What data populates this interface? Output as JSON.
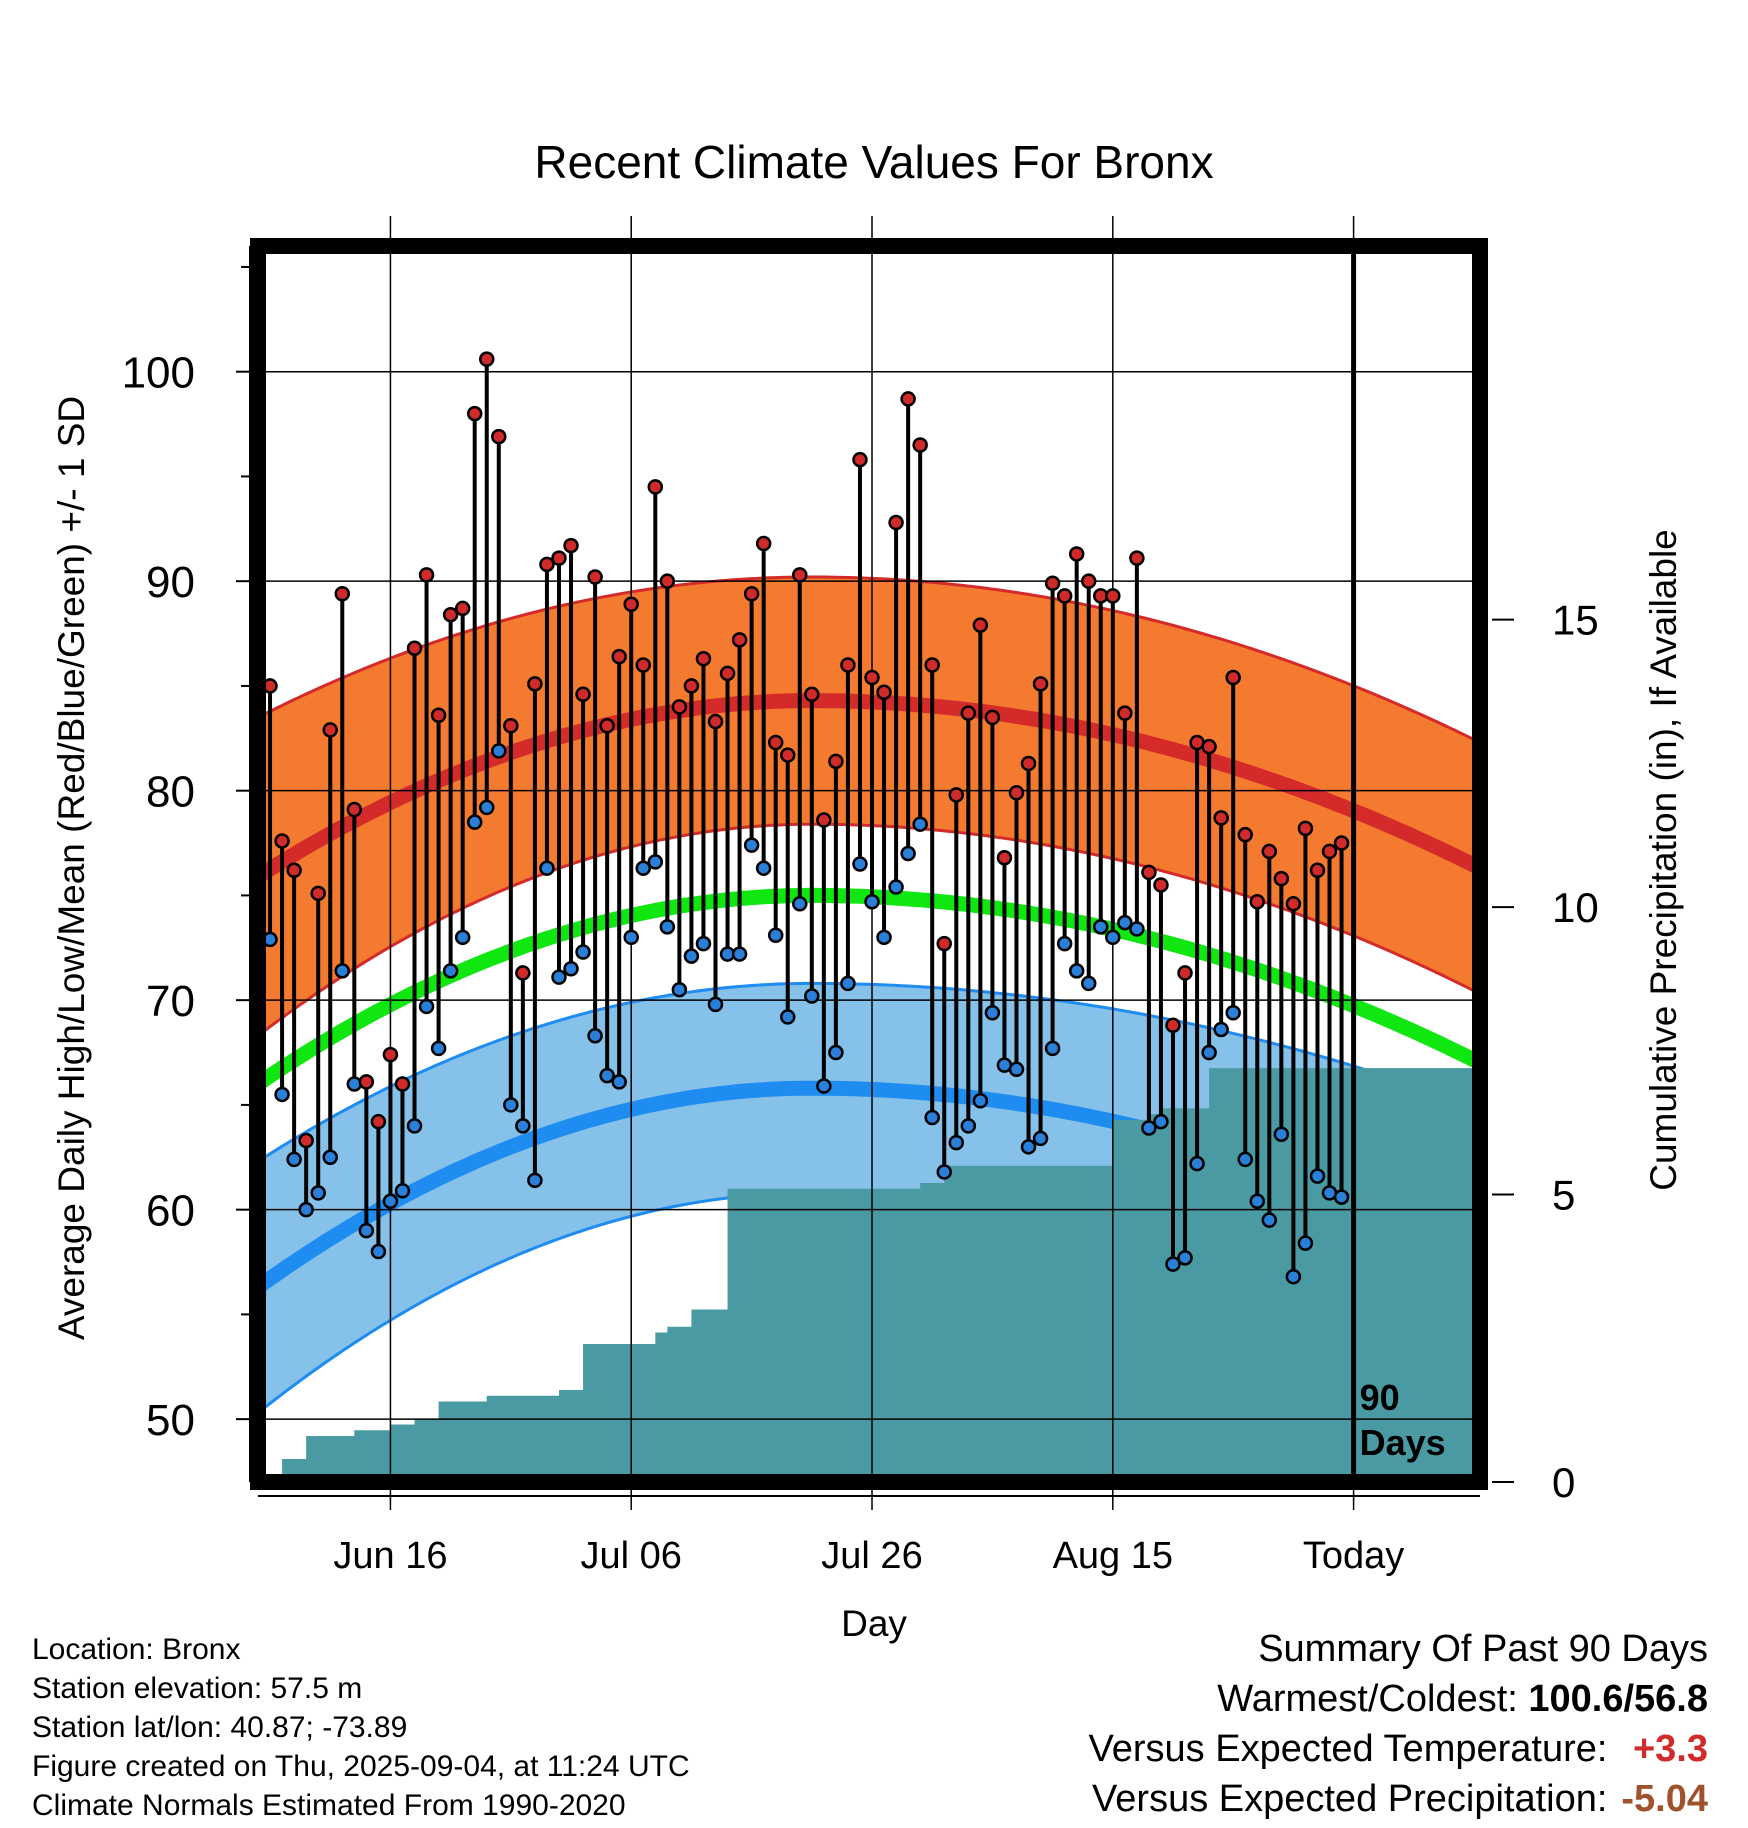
{
  "chart_data": {
    "type": "line",
    "title": "Recent Climate Values For Bronx",
    "xlabel": "Day",
    "ylabel": "Average Daily High/Low/Mean (Red/Blue/Green) +/- 1 SD",
    "y2label": "Cumulative Precipitation (in), If Available",
    "ylim": [
      47,
      106
    ],
    "y2lim": [
      0,
      21.5
    ],
    "xlim": [
      -1,
      100.5
    ],
    "xaxis_ticks": [
      {
        "label": "Jun 16",
        "day": 10
      },
      {
        "label": "Jul 06",
        "day": 30
      },
      {
        "label": "Jul 26",
        "day": 50
      },
      {
        "label": "Aug 15",
        "day": 70
      },
      {
        "label": "Today",
        "day": 90
      }
    ],
    "yaxis_ticks": [
      50,
      60,
      70,
      80,
      90,
      100
    ],
    "y2axis_ticks": [
      0,
      5,
      10,
      15
    ],
    "today_label": [
      "90",
      "Days"
    ],
    "grid": true,
    "normals": {
      "high_mean": {
        "start": 75.9,
        "peak": 84.3,
        "end": 76.3,
        "peak_day": 45
      },
      "high_sd": {
        "start": 7.6,
        "peak": 5.9,
        "end": 6.0
      },
      "low_mean": {
        "start": 56.3,
        "peak": 65.8,
        "end": 58.0,
        "peak_day": 45
      },
      "low_sd": {
        "start": 6.0,
        "peak": 5.0,
        "end": 6.8
      },
      "mean": {
        "start": 66.0,
        "peak": 75.0,
        "end": 67.0,
        "peak_day": 45
      }
    },
    "series": [
      {
        "name": "High",
        "values": [
          85.0,
          77.6,
          76.2,
          63.3,
          75.1,
          82.9,
          89.4,
          79.1,
          66.1,
          64.2,
          67.4,
          66.0,
          86.8,
          90.3,
          83.6,
          88.4,
          88.7,
          98.0,
          100.6,
          96.9,
          83.1,
          71.3,
          85.1,
          90.8,
          91.1,
          91.7,
          84.6,
          90.2,
          83.1,
          86.4,
          88.9,
          86.0,
          94.5,
          90.0,
          84.0,
          85.0,
          86.3,
          83.3,
          85.6,
          87.2,
          89.4,
          91.8,
          82.3,
          81.7,
          90.3,
          84.6,
          78.6,
          81.4,
          86.0,
          95.8,
          85.4,
          84.7,
          92.8,
          98.7,
          96.5,
          86.0,
          72.7,
          79.8,
          83.7,
          87.9,
          83.5,
          76.8,
          79.9,
          81.3,
          85.1,
          89.9,
          89.3,
          91.3,
          90.0,
          89.3,
          89.3,
          83.7,
          91.1,
          76.1,
          75.5,
          68.8,
          71.3,
          82.3,
          82.1,
          78.7,
          85.4,
          77.9,
          74.7,
          77.1,
          75.8,
          74.6,
          78.2,
          76.2,
          77.1,
          77.5
        ]
      },
      {
        "name": "Low",
        "values": [
          72.9,
          65.5,
          62.4,
          60.0,
          60.8,
          62.5,
          71.4,
          66.0,
          59.0,
          58.0,
          60.4,
          60.9,
          64.0,
          69.7,
          67.7,
          71.4,
          73.0,
          78.5,
          79.2,
          81.9,
          65.0,
          64.0,
          61.4,
          76.3,
          71.1,
          71.5,
          72.3,
          68.3,
          66.4,
          66.1,
          73.0,
          76.3,
          76.6,
          73.5,
          70.5,
          72.1,
          72.7,
          69.8,
          72.2,
          72.2,
          77.4,
          76.3,
          73.1,
          69.2,
          74.6,
          70.2,
          65.9,
          67.5,
          70.8,
          76.5,
          74.7,
          73.0,
          75.4,
          77.0,
          78.4,
          64.4,
          61.8,
          63.2,
          64.0,
          65.2,
          69.4,
          66.9,
          66.7,
          63.0,
          63.4,
          67.7,
          72.7,
          71.4,
          70.8,
          73.5,
          73.0,
          73.7,
          73.4,
          63.9,
          64.2,
          57.4,
          57.7,
          62.2,
          67.5,
          68.6,
          69.4,
          62.4,
          60.4,
          59.5,
          63.6,
          56.8,
          58.4,
          61.6,
          60.8,
          60.6
        ]
      },
      {
        "name": "Cumulative Precipitation",
        "x": [
          -1,
          1,
          3,
          7,
          10,
          12,
          14,
          18,
          24,
          26,
          32,
          33,
          35,
          38,
          40,
          54,
          56,
          68,
          70,
          73,
          74,
          78,
          100.5
        ],
        "values": [
          0.0,
          0.4,
          0.8,
          0.9,
          1.0,
          1.1,
          1.4,
          1.5,
          1.6,
          2.4,
          2.6,
          2.7,
          3.0,
          5.1,
          5.1,
          5.2,
          5.5,
          5.5,
          6.3,
          6.4,
          6.5,
          7.2,
          7.2
        ]
      }
    ]
  },
  "footer": {
    "location": "Location: Bronx",
    "elevation": "Station elevation: 57.5 m",
    "latlon": "Station lat/lon: 40.87; -73.89",
    "created": "Figure created on Thu, 2025-09-04, at 11:24 UTC",
    "normals": "Climate Normals Estimated From 1990-2020"
  },
  "summary": {
    "title": "Summary Of Past 90 Days",
    "warm_cold_label": "Warmest/Coldest:",
    "warm_cold_value": "100.6/56.8",
    "temp_label": "Versus Expected Temperature:",
    "temp_value": "+3.3",
    "precip_label": "Versus Expected Precipitation:",
    "precip_value": "-5.04"
  },
  "colors": {
    "high_band": "#f47a30",
    "high_line": "#d42a2a",
    "low_band": "#85c1e8",
    "low_line": "#1e8cf0",
    "mean_line": "#10e610",
    "precip_fill": "#4a9aa4",
    "high_dot": "#d12a2a",
    "low_dot": "#2a7fd9"
  }
}
